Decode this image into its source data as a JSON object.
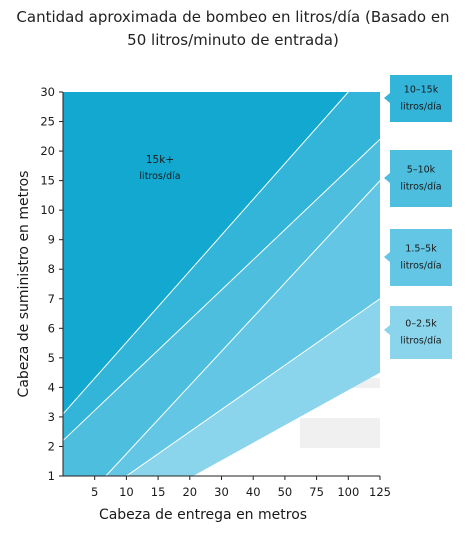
{
  "chart_data": {
    "type": "area",
    "title_lines": [
      "Cantidad aproximada de bombeo en litros/día (Basado en",
      "50 litros/minuto de entrada)"
    ],
    "xlabel": "Cabeza de entrega en metros",
    "ylabel": "Cabeza de suministro en metros",
    "x_ticks": [
      "5",
      "10",
      "15",
      "20",
      "30",
      "40",
      "50",
      "75",
      "100",
      "125"
    ],
    "y_ticks": [
      "1",
      "2",
      "3",
      "4",
      "5",
      "6",
      "7",
      "8",
      "9",
      "10",
      "15",
      "20",
      "25",
      "30"
    ],
    "x_scale": "categorical",
    "y_scale": "categorical",
    "xlim": [
      "0",
      "125"
    ],
    "ylim": [
      "1",
      "30"
    ],
    "grid": false,
    "series": [
      {
        "name": "15k+",
        "label_line1": "15k+",
        "label_line2": "litros/día",
        "color": "#12a8cf"
      },
      {
        "name": "10–15k",
        "label_line1": "10–15k",
        "label_line2": "litros/día",
        "color": "#33b4d9"
      },
      {
        "name": "5–10k",
        "label_line1": "5–10k",
        "label_line2": "litros/día",
        "color": "#4ebedf"
      },
      {
        "name": "1.5–5k",
        "label_line1": "1.5–5k",
        "label_line2": "litros/día",
        "color": "#62c6e4"
      },
      {
        "name": "0–2.5k",
        "label_line1": "0–2.5k",
        "label_line2": "litros/día",
        "color": "#8ad5ec"
      }
    ],
    "boundaries": [
      {
        "between": "15k+ / 10–15k",
        "x_index_at_y1": 0,
        "y_index_at_x0": 2.1,
        "x_index_at_ytop": 9.0
      },
      {
        "between": "10–15k / 5–10k",
        "x_index_at_y1": 0.35,
        "y_index_at_x0": 1.2,
        "y_index_at_x125": 11.4
      },
      {
        "between": "5–10k / 1.5–5k",
        "x_index_at_y1": 1.35,
        "y_index_at_x125": 10.0
      },
      {
        "between": "1.5–5k / 0–2.5k",
        "x_index_at_y1": 2.0,
        "y_index_at_x125": 6.0
      },
      {
        "between": "0–2.5k / none",
        "x_index_at_y1": 4.1,
        "y_index_at_x125": 3.5
      }
    ],
    "legend_placement": "right"
  }
}
